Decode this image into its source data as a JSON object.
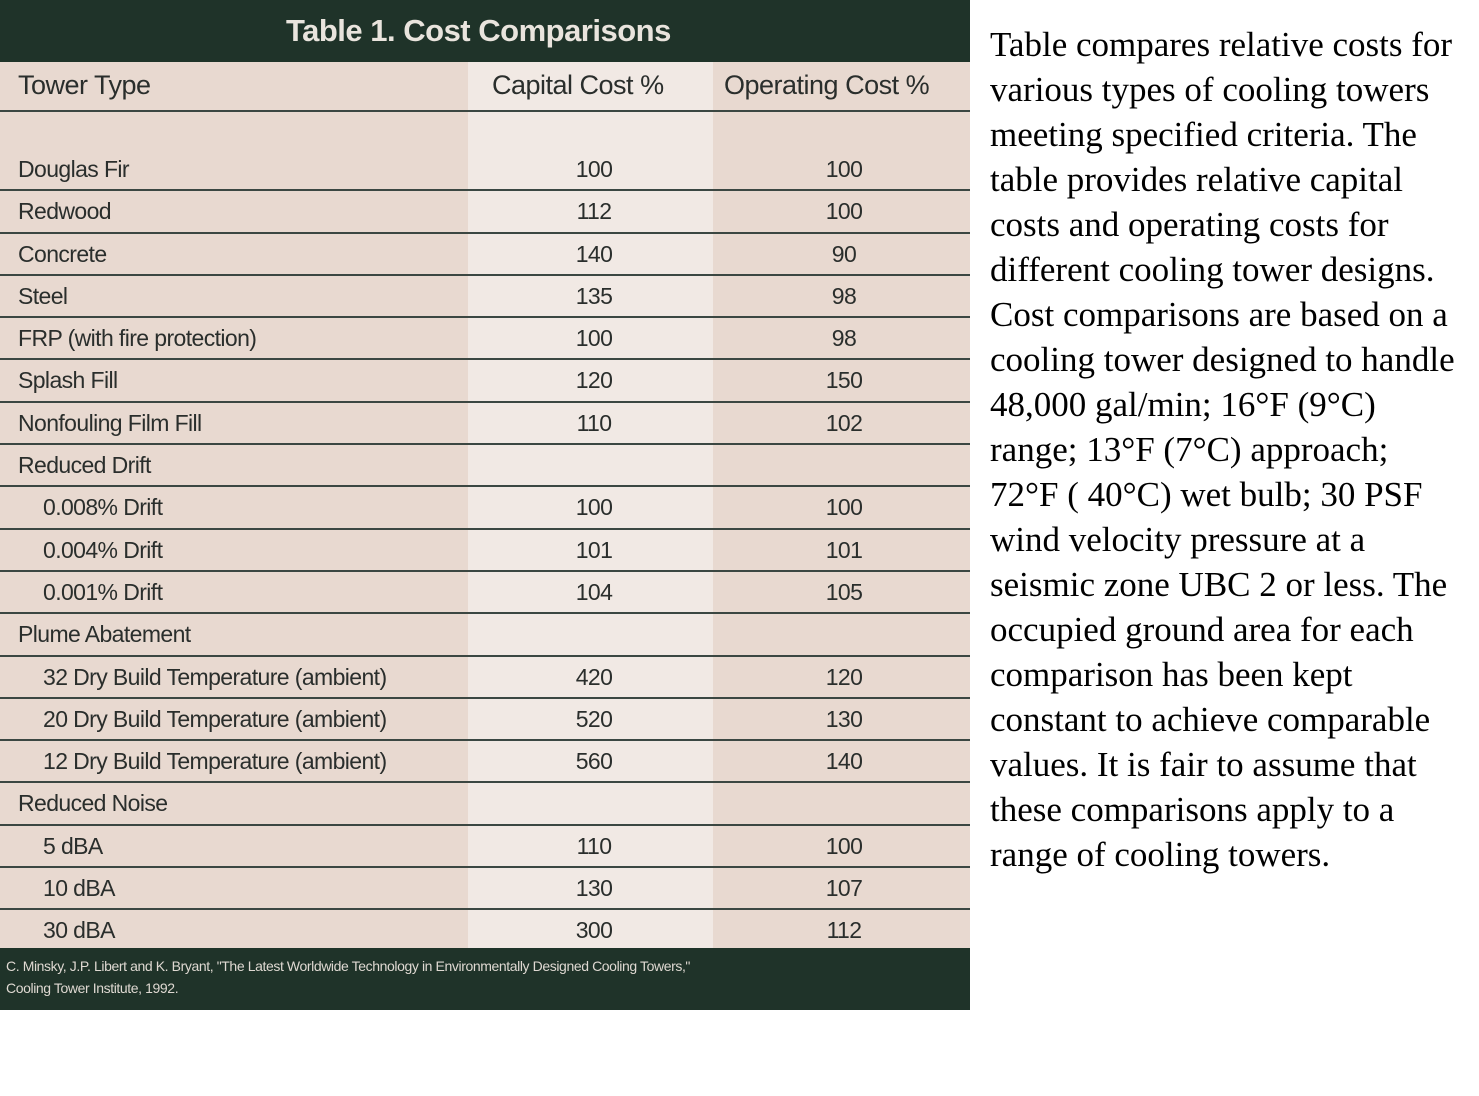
{
  "table": {
    "title": "Table 1. Cost Comparisons",
    "headers": {
      "tower_type": "Tower Type",
      "capital_cost": "Capital Cost %",
      "operating_cost": "Operating Cost %"
    },
    "rows": [
      {
        "type": "Douglas Fir",
        "capital": "100",
        "operating": "100",
        "indent": false
      },
      {
        "type": "Redwood",
        "capital": "112",
        "operating": "100",
        "indent": false
      },
      {
        "type": "Concrete",
        "capital": "140",
        "operating": "90",
        "indent": false
      },
      {
        "type": "Steel",
        "capital": "135",
        "operating": "98",
        "indent": false
      },
      {
        "type": "FRP (with fire protection)",
        "capital": "100",
        "operating": "98",
        "indent": false
      },
      {
        "type": "Splash Fill",
        "capital": "120",
        "operating": "150",
        "indent": false
      },
      {
        "type": "Nonfouling Film Fill",
        "capital": "110",
        "operating": "102",
        "indent": false
      },
      {
        "type": "Reduced Drift",
        "capital": "",
        "operating": "",
        "indent": false
      },
      {
        "type": "0.008% Drift",
        "capital": "100",
        "operating": "100",
        "indent": true
      },
      {
        "type": "0.004% Drift",
        "capital": "101",
        "operating": "101",
        "indent": true
      },
      {
        "type": "0.001% Drift",
        "capital": "104",
        "operating": "105",
        "indent": true
      },
      {
        "type": "Plume Abatement",
        "capital": "",
        "operating": "",
        "indent": false
      },
      {
        "type": "32 Dry Build Temperature (ambient)",
        "capital": "420",
        "operating": "120",
        "indent": true
      },
      {
        "type": "20 Dry Build Temperature (ambient)",
        "capital": "520",
        "operating": "130",
        "indent": true
      },
      {
        "type": "12 Dry Build Temperature (ambient)",
        "capital": "560",
        "operating": "140",
        "indent": true
      },
      {
        "type": "Reduced Noise",
        "capital": "",
        "operating": "",
        "indent": false
      },
      {
        "type": "5 dBA",
        "capital": "110",
        "operating": "100",
        "indent": true
      },
      {
        "type": "10 dBA",
        "capital": "130",
        "operating": "107",
        "indent": true
      },
      {
        "type": "30 dBA",
        "capital": "300",
        "operating": "112",
        "indent": true
      }
    ],
    "source_line1": "C. Minsky, J.P. Libert and K. Bryant, \"The Latest Worldwide Technology in Environmentally Designed Cooling Towers,\"",
    "source_line2": "Cooling Tower Institute, 1992."
  },
  "description": "Table compares relative costs for various types of cooling towers meeting specified criteria. The table provides relative capital costs and operating costs for different cooling tower designs. Cost comparisons are based on a cooling tower designed to handle 48,000 gal/min; 16°F (9°C) range; 13°F (7°C) approach; 72°F ( 40°C) wet bulb; 30 PSF wind velocity pressure at a seismic zone UBC 2 or less. The occupied ground area for each comparison has been kept constant to achieve comparable values. It is fair to assume that these comparisons apply to a range of cooling towers."
}
